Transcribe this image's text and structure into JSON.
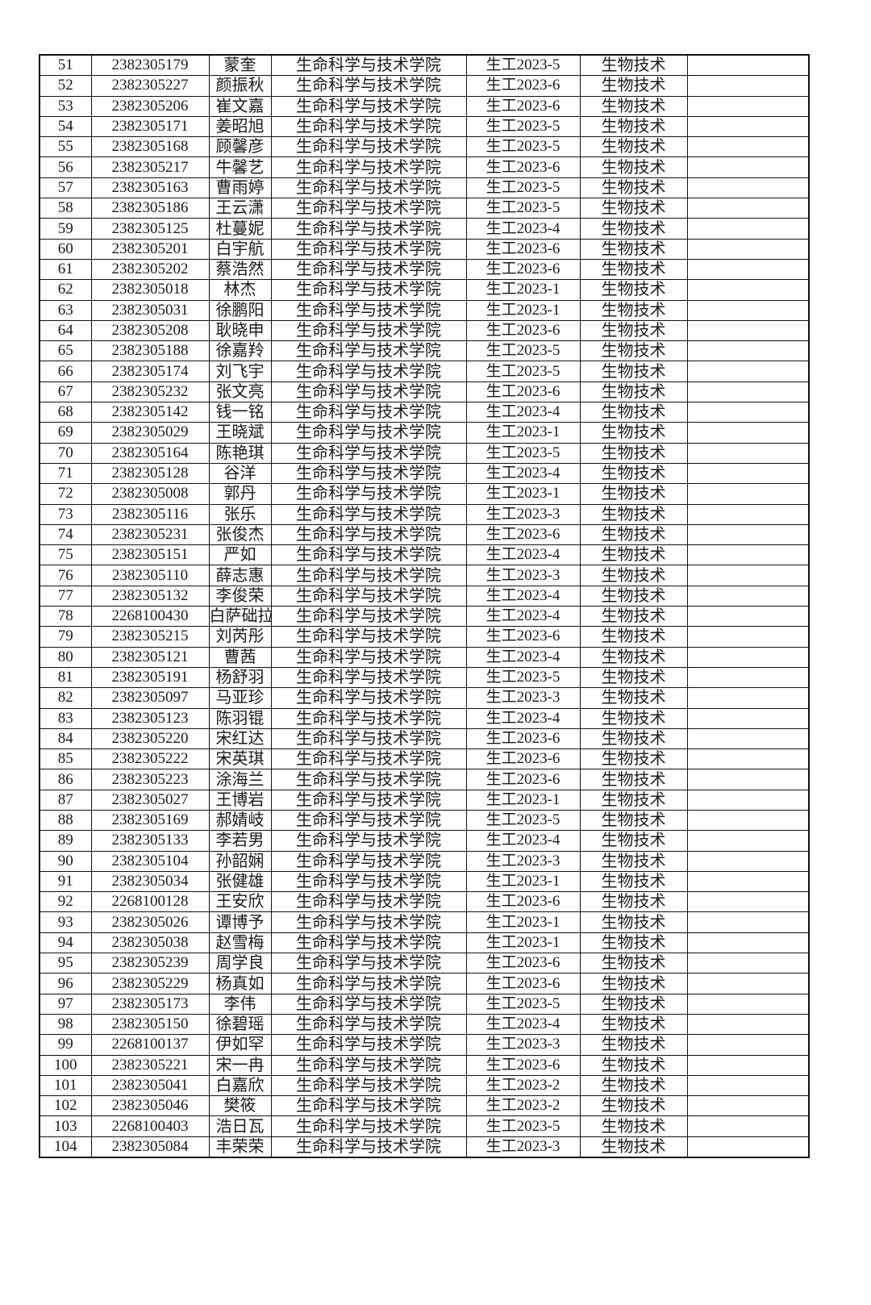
{
  "table": {
    "college": "生命科学与技术学院",
    "major": "生物技术",
    "rows": [
      [
        "51",
        "2382305179",
        "蒙奎",
        "生命科学与技术学院",
        "生工2023-5",
        "生物技术",
        ""
      ],
      [
        "52",
        "2382305227",
        "颜振秋",
        "生命科学与技术学院",
        "生工2023-6",
        "生物技术",
        ""
      ],
      [
        "53",
        "2382305206",
        "崔文嘉",
        "生命科学与技术学院",
        "生工2023-6",
        "生物技术",
        ""
      ],
      [
        "54",
        "2382305171",
        "姜昭旭",
        "生命科学与技术学院",
        "生工2023-5",
        "生物技术",
        ""
      ],
      [
        "55",
        "2382305168",
        "顾馨彦",
        "生命科学与技术学院",
        "生工2023-5",
        "生物技术",
        ""
      ],
      [
        "56",
        "2382305217",
        "牛馨艺",
        "生命科学与技术学院",
        "生工2023-6",
        "生物技术",
        ""
      ],
      [
        "57",
        "2382305163",
        "曹雨婷",
        "生命科学与技术学院",
        "生工2023-5",
        "生物技术",
        ""
      ],
      [
        "58",
        "2382305186",
        "王云潇",
        "生命科学与技术学院",
        "生工2023-5",
        "生物技术",
        ""
      ],
      [
        "59",
        "2382305125",
        "杜蔓妮",
        "生命科学与技术学院",
        "生工2023-4",
        "生物技术",
        ""
      ],
      [
        "60",
        "2382305201",
        "白宇航",
        "生命科学与技术学院",
        "生工2023-6",
        "生物技术",
        ""
      ],
      [
        "61",
        "2382305202",
        "蔡浩然",
        "生命科学与技术学院",
        "生工2023-6",
        "生物技术",
        ""
      ],
      [
        "62",
        "2382305018",
        "林杰",
        "生命科学与技术学院",
        "生工2023-1",
        "生物技术",
        ""
      ],
      [
        "63",
        "2382305031",
        "徐鹏阳",
        "生命科学与技术学院",
        "生工2023-1",
        "生物技术",
        ""
      ],
      [
        "64",
        "2382305208",
        "耿晓申",
        "生命科学与技术学院",
        "生工2023-6",
        "生物技术",
        ""
      ],
      [
        "65",
        "2382305188",
        "徐嘉羚",
        "生命科学与技术学院",
        "生工2023-5",
        "生物技术",
        ""
      ],
      [
        "66",
        "2382305174",
        "刘飞宇",
        "生命科学与技术学院",
        "生工2023-5",
        "生物技术",
        ""
      ],
      [
        "67",
        "2382305232",
        "张文亮",
        "生命科学与技术学院",
        "生工2023-6",
        "生物技术",
        ""
      ],
      [
        "68",
        "2382305142",
        "钱一铭",
        "生命科学与技术学院",
        "生工2023-4",
        "生物技术",
        ""
      ],
      [
        "69",
        "2382305029",
        "王晓斌",
        "生命科学与技术学院",
        "生工2023-1",
        "生物技术",
        ""
      ],
      [
        "70",
        "2382305164",
        "陈艳琪",
        "生命科学与技术学院",
        "生工2023-5",
        "生物技术",
        ""
      ],
      [
        "71",
        "2382305128",
        "谷洋",
        "生命科学与技术学院",
        "生工2023-4",
        "生物技术",
        ""
      ],
      [
        "72",
        "2382305008",
        "郭丹",
        "生命科学与技术学院",
        "生工2023-1",
        "生物技术",
        ""
      ],
      [
        "73",
        "2382305116",
        "张乐",
        "生命科学与技术学院",
        "生工2023-3",
        "生物技术",
        ""
      ],
      [
        "74",
        "2382305231",
        "张俊杰",
        "生命科学与技术学院",
        "生工2023-6",
        "生物技术",
        ""
      ],
      [
        "75",
        "2382305151",
        "严如",
        "生命科学与技术学院",
        "生工2023-4",
        "生物技术",
        ""
      ],
      [
        "76",
        "2382305110",
        "薛志惠",
        "生命科学与技术学院",
        "生工2023-3",
        "生物技术",
        ""
      ],
      [
        "77",
        "2382305132",
        "李俊荣",
        "生命科学与技术学院",
        "生工2023-4",
        "生物技术",
        ""
      ],
      [
        "78",
        "2268100430",
        "白萨础拉",
        "生命科学与技术学院",
        "生工2023-4",
        "生物技术",
        ""
      ],
      [
        "79",
        "2382305215",
        "刘芮彤",
        "生命科学与技术学院",
        "生工2023-6",
        "生物技术",
        ""
      ],
      [
        "80",
        "2382305121",
        "曹茜",
        "生命科学与技术学院",
        "生工2023-4",
        "生物技术",
        ""
      ],
      [
        "81",
        "2382305191",
        "杨舒羽",
        "生命科学与技术学院",
        "生工2023-5",
        "生物技术",
        ""
      ],
      [
        "82",
        "2382305097",
        "马亚珍",
        "生命科学与技术学院",
        "生工2023-3",
        "生物技术",
        ""
      ],
      [
        "83",
        "2382305123",
        "陈羽锟",
        "生命科学与技术学院",
        "生工2023-4",
        "生物技术",
        ""
      ],
      [
        "84",
        "2382305220",
        "宋红达",
        "生命科学与技术学院",
        "生工2023-6",
        "生物技术",
        ""
      ],
      [
        "85",
        "2382305222",
        "宋英琪",
        "生命科学与技术学院",
        "生工2023-6",
        "生物技术",
        ""
      ],
      [
        "86",
        "2382305223",
        "涂海兰",
        "生命科学与技术学院",
        "生工2023-6",
        "生物技术",
        ""
      ],
      [
        "87",
        "2382305027",
        "王博岩",
        "生命科学与技术学院",
        "生工2023-1",
        "生物技术",
        ""
      ],
      [
        "88",
        "2382305169",
        "郝婧岐",
        "生命科学与技术学院",
        "生工2023-5",
        "生物技术",
        ""
      ],
      [
        "89",
        "2382305133",
        "李若男",
        "生命科学与技术学院",
        "生工2023-4",
        "生物技术",
        ""
      ],
      [
        "90",
        "2382305104",
        "孙韶娴",
        "生命科学与技术学院",
        "生工2023-3",
        "生物技术",
        ""
      ],
      [
        "91",
        "2382305034",
        "张健雄",
        "生命科学与技术学院",
        "生工2023-1",
        "生物技术",
        ""
      ],
      [
        "92",
        "2268100128",
        "王安欣",
        "生命科学与技术学院",
        "生工2023-6",
        "生物技术",
        ""
      ],
      [
        "93",
        "2382305026",
        "谭博予",
        "生命科学与技术学院",
        "生工2023-1",
        "生物技术",
        ""
      ],
      [
        "94",
        "2382305038",
        "赵雪梅",
        "生命科学与技术学院",
        "生工2023-1",
        "生物技术",
        ""
      ],
      [
        "95",
        "2382305239",
        "周学良",
        "生命科学与技术学院",
        "生工2023-6",
        "生物技术",
        ""
      ],
      [
        "96",
        "2382305229",
        "杨真如",
        "生命科学与技术学院",
        "生工2023-6",
        "生物技术",
        ""
      ],
      [
        "97",
        "2382305173",
        "李伟",
        "生命科学与技术学院",
        "生工2023-5",
        "生物技术",
        ""
      ],
      [
        "98",
        "2382305150",
        "徐碧瑶",
        "生命科学与技术学院",
        "生工2023-4",
        "生物技术",
        ""
      ],
      [
        "99",
        "2268100137",
        "伊如罕",
        "生命科学与技术学院",
        "生工2023-3",
        "生物技术",
        ""
      ],
      [
        "100",
        "2382305221",
        "宋一冉",
        "生命科学与技术学院",
        "生工2023-6",
        "生物技术",
        ""
      ],
      [
        "101",
        "2382305041",
        "白嘉欣",
        "生命科学与技术学院",
        "生工2023-2",
        "生物技术",
        ""
      ],
      [
        "102",
        "2382305046",
        "樊筱",
        "生命科学与技术学院",
        "生工2023-2",
        "生物技术",
        ""
      ],
      [
        "103",
        "2268100403",
        "浩日瓦",
        "生命科学与技术学院",
        "生工2023-5",
        "生物技术",
        ""
      ],
      [
        "104",
        "2382305084",
        "丰荣荣",
        "生命科学与技术学院",
        "生工2023-3",
        "生物技术",
        ""
      ]
    ]
  }
}
